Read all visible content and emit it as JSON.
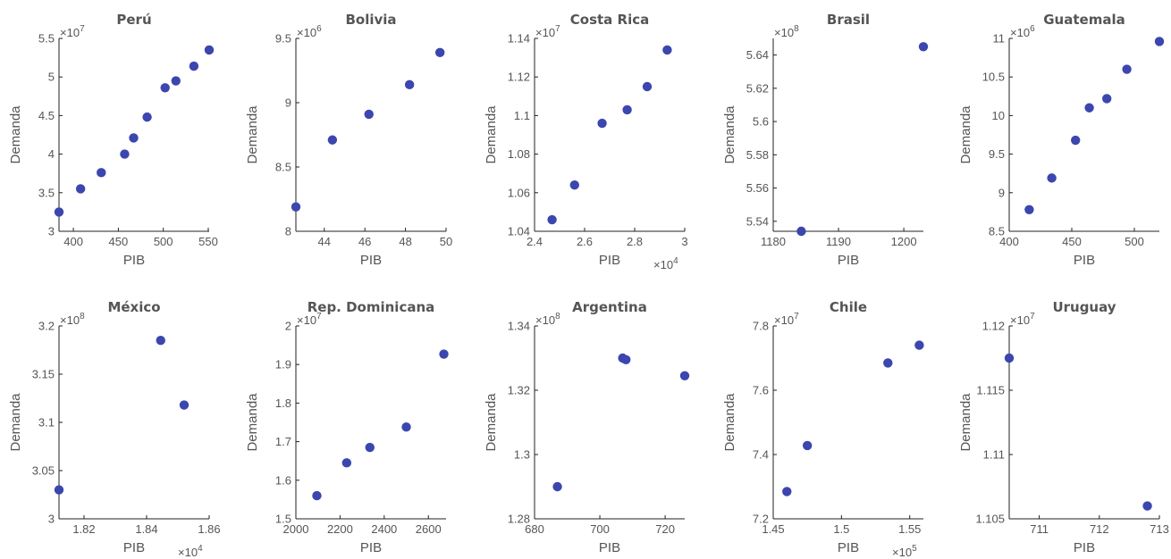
{
  "marker_color": "#3b46ae",
  "chart_data": [
    {
      "type": "scatter",
      "title": "Perú",
      "xlabel": "PIB",
      "ylabel": "Demanda",
      "x": [
        384,
        408,
        431,
        457,
        467,
        482,
        502,
        514,
        534,
        551
      ],
      "y": [
        32500000,
        35500000,
        37600000,
        40000000,
        42100000,
        44800000,
        48600000,
        49500000,
        51400000,
        53500000
      ],
      "xlim": [
        384,
        551
      ],
      "ylim": [
        30000000,
        55000000
      ],
      "xticks": [
        {
          "v": 400,
          "t": "400"
        },
        {
          "v": 450,
          "t": "450"
        },
        {
          "v": 500,
          "t": "500"
        },
        {
          "v": 550,
          "t": "550"
        }
      ],
      "yticks": [
        {
          "v": 30000000,
          "t": "3"
        },
        {
          "v": 35000000,
          "t": "3.5"
        },
        {
          "v": 40000000,
          "t": "4"
        },
        {
          "v": 45000000,
          "t": "4.5"
        },
        {
          "v": 50000000,
          "t": "5"
        },
        {
          "v": 55000000,
          "t": "5.5"
        }
      ],
      "yexp": "7",
      "xexp": ""
    },
    {
      "type": "scatter",
      "title": "Bolivia",
      "xlabel": "PIB",
      "ylabel": "Demanda",
      "x": [
        42.6,
        44.4,
        46.2,
        48.2,
        49.7
      ],
      "y": [
        8190000,
        8710000,
        8910000,
        9140000,
        9390000
      ],
      "xlim": [
        42.6,
        50
      ],
      "ylim": [
        8000000,
        9500000
      ],
      "xticks": [
        {
          "v": 44,
          "t": "44"
        },
        {
          "v": 46,
          "t": "46"
        },
        {
          "v": 48,
          "t": "48"
        },
        {
          "v": 50,
          "t": "50"
        }
      ],
      "yticks": [
        {
          "v": 8000000,
          "t": "8"
        },
        {
          "v": 8500000,
          "t": "8.5"
        },
        {
          "v": 9000000,
          "t": "9"
        },
        {
          "v": 9500000,
          "t": "9.5"
        }
      ],
      "yexp": "6",
      "xexp": ""
    },
    {
      "type": "scatter",
      "title": "Costa Rica",
      "xlabel": "PIB",
      "ylabel": "Demanda",
      "x": [
        24700,
        25600,
        26700,
        27700,
        28500,
        29300
      ],
      "y": [
        10460000,
        10640000,
        10960000,
        11030000,
        11150000,
        11340000
      ],
      "xlim": [
        24000,
        30000
      ],
      "ylim": [
        10400000,
        11400000
      ],
      "xticks": [
        {
          "v": 24000,
          "t": "2.4"
        },
        {
          "v": 26000,
          "t": "2.6"
        },
        {
          "v": 28000,
          "t": "2.8"
        },
        {
          "v": 30000,
          "t": "3"
        }
      ],
      "yticks": [
        {
          "v": 10400000,
          "t": "1.04"
        },
        {
          "v": 10600000,
          "t": "1.06"
        },
        {
          "v": 10800000,
          "t": "1.08"
        },
        {
          "v": 11000000,
          "t": "1.1"
        },
        {
          "v": 11200000,
          "t": "1.12"
        },
        {
          "v": 11400000,
          "t": "1.14"
        }
      ],
      "yexp": "7",
      "xexp": "4"
    },
    {
      "type": "scatter",
      "title": "Brasil",
      "xlabel": "PIB",
      "ylabel": "Demanda",
      "x": [
        1184.3,
        1203
      ],
      "y": [
        553400000,
        564500000
      ],
      "xlim": [
        1180,
        1203
      ],
      "ylim": [
        553400000,
        565000000
      ],
      "xticks": [
        {
          "v": 1180,
          "t": "1180"
        },
        {
          "v": 1190,
          "t": "1190"
        },
        {
          "v": 1200,
          "t": "1200"
        }
      ],
      "yticks": [
        {
          "v": 554000000,
          "t": "5.54"
        },
        {
          "v": 556000000,
          "t": "5.56"
        },
        {
          "v": 558000000,
          "t": "5.58"
        },
        {
          "v": 560000000,
          "t": "5.6"
        },
        {
          "v": 562000000,
          "t": "5.62"
        },
        {
          "v": 564000000,
          "t": "5.64"
        }
      ],
      "yexp": "8",
      "xexp": ""
    },
    {
      "type": "scatter",
      "title": "Guatemala",
      "xlabel": "PIB",
      "ylabel": "Demanda",
      "x": [
        416,
        434,
        453,
        464,
        478,
        494,
        520
      ],
      "y": [
        8780000,
        9190000,
        9680000,
        10100000,
        10220000,
        10600000,
        10960000
      ],
      "xlim": [
        400,
        520
      ],
      "ylim": [
        8500000,
        11000000
      ],
      "xticks": [
        {
          "v": 400,
          "t": "400"
        },
        {
          "v": 450,
          "t": "450"
        },
        {
          "v": 500,
          "t": "500"
        }
      ],
      "yticks": [
        {
          "v": 8500000,
          "t": "8.5"
        },
        {
          "v": 9000000,
          "t": "9"
        },
        {
          "v": 9500000,
          "t": "9.5"
        },
        {
          "v": 10000000,
          "t": "10"
        },
        {
          "v": 10500000,
          "t": "10.5"
        },
        {
          "v": 11000000,
          "t": "11"
        }
      ],
      "yexp": "6",
      "xexp": ""
    },
    {
      "type": "scatter",
      "title": "México",
      "xlabel": "PIB",
      "ylabel": "Demanda",
      "x": [
        18120,
        18445,
        18520
      ],
      "y": [
        303000000,
        318500000,
        311800000
      ],
      "xlim": [
        18120,
        18600
      ],
      "ylim": [
        300000000,
        320000000
      ],
      "xticks": [
        {
          "v": 18200,
          "t": "1.82"
        },
        {
          "v": 18400,
          "t": "1.84"
        },
        {
          "v": 18600,
          "t": "1.86"
        }
      ],
      "yticks": [
        {
          "v": 300000000,
          "t": "3"
        },
        {
          "v": 305000000,
          "t": "3.05"
        },
        {
          "v": 310000000,
          "t": "3.1"
        },
        {
          "v": 315000000,
          "t": "3.15"
        },
        {
          "v": 320000000,
          "t": "3.2"
        }
      ],
      "yexp": "8",
      "xexp": "4"
    },
    {
      "type": "scatter",
      "title": "Rep. Dominicana",
      "xlabel": "PIB",
      "ylabel": "Demanda",
      "x": [
        2095,
        2230,
        2335,
        2500,
        2670
      ],
      "y": [
        15600000,
        16450000,
        16850000,
        17380000,
        19270000
      ],
      "xlim": [
        2000,
        2680
      ],
      "ylim": [
        15000000,
        20000000
      ],
      "xticks": [
        {
          "v": 2000,
          "t": "2000"
        },
        {
          "v": 2200,
          "t": "2200"
        },
        {
          "v": 2400,
          "t": "2400"
        },
        {
          "v": 2600,
          "t": "2600"
        }
      ],
      "yticks": [
        {
          "v": 15000000,
          "t": "1.5"
        },
        {
          "v": 16000000,
          "t": "1.6"
        },
        {
          "v": 17000000,
          "t": "1.7"
        },
        {
          "v": 18000000,
          "t": "1.8"
        },
        {
          "v": 19000000,
          "t": "1.9"
        },
        {
          "v": 20000000,
          "t": "2"
        }
      ],
      "yexp": "7",
      "xexp": ""
    },
    {
      "type": "scatter",
      "title": "Argentina",
      "xlabel": "PIB",
      "ylabel": "Demanda",
      "x": [
        687,
        707,
        708,
        726
      ],
      "y": [
        129000000,
        133000000,
        132950000,
        132450000
      ],
      "xlim": [
        680,
        726
      ],
      "ylim": [
        128000000,
        134000000
      ],
      "xticks": [
        {
          "v": 680,
          "t": "680"
        },
        {
          "v": 700,
          "t": "700"
        },
        {
          "v": 720,
          "t": "720"
        }
      ],
      "yticks": [
        {
          "v": 128000000,
          "t": "1.28"
        },
        {
          "v": 130000000,
          "t": "1.3"
        },
        {
          "v": 132000000,
          "t": "1.32"
        },
        {
          "v": 134000000,
          "t": "1.34"
        }
      ],
      "yexp": "8",
      "xexp": ""
    },
    {
      "type": "scatter",
      "title": "Chile",
      "xlabel": "PIB",
      "ylabel": "Demanda",
      "x": [
        146000,
        147500,
        153400,
        155700
      ],
      "y": [
        72850000,
        74280000,
        76850000,
        77400000
      ],
      "xlim": [
        145000,
        156000
      ],
      "ylim": [
        72000000,
        78000000
      ],
      "xticks": [
        {
          "v": 145000,
          "t": "1.45"
        },
        {
          "v": 150000,
          "t": "1.5"
        },
        {
          "v": 155000,
          "t": "1.55"
        }
      ],
      "yticks": [
        {
          "v": 72000000,
          "t": "7.2"
        },
        {
          "v": 74000000,
          "t": "7.4"
        },
        {
          "v": 76000000,
          "t": "7.6"
        },
        {
          "v": 78000000,
          "t": "7.8"
        }
      ],
      "yexp": "7",
      "xexp": "5"
    },
    {
      "type": "scatter",
      "title": "Uruguay",
      "xlabel": "PIB",
      "ylabel": "Demanda",
      "x": [
        710.5,
        712.8
      ],
      "y": [
        11175000,
        11060000
      ],
      "xlim": [
        710.5,
        713
      ],
      "ylim": [
        11050000,
        11200000
      ],
      "xticks": [
        {
          "v": 711,
          "t": "711"
        },
        {
          "v": 712,
          "t": "712"
        },
        {
          "v": 713,
          "t": "713"
        }
      ],
      "yticks": [
        {
          "v": 11050000,
          "t": "1.105"
        },
        {
          "v": 11100000,
          "t": "1.11"
        },
        {
          "v": 11150000,
          "t": "1.115"
        },
        {
          "v": 11200000,
          "t": "1.12"
        }
      ],
      "yexp": "7",
      "xexp": ""
    }
  ]
}
